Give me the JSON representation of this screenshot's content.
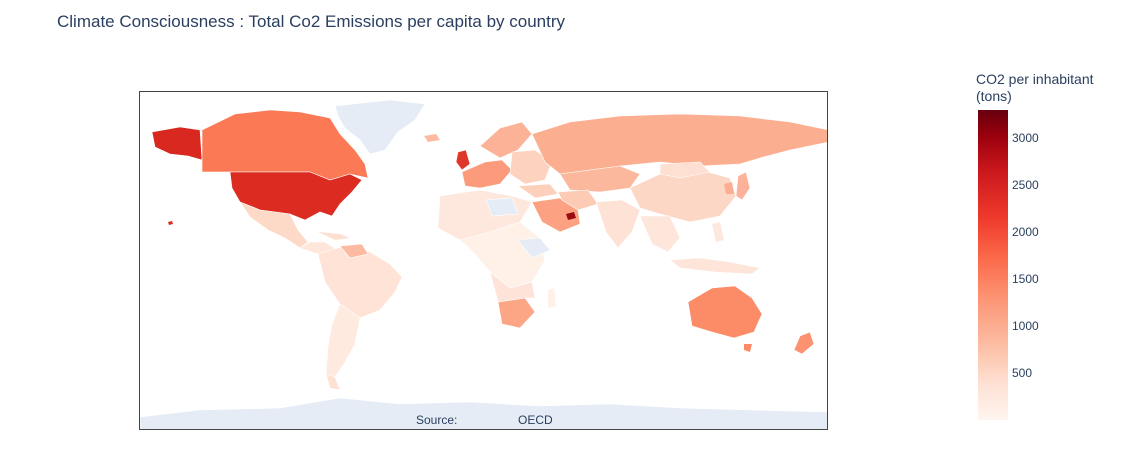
{
  "title": "Climate Consciousness : Total Co2 Emissions per capita by country",
  "annotation": {
    "label": "Source:",
    "value": "OECD"
  },
  "colorbar": {
    "title_line1": "CO2 per inhabitant",
    "title_line2": "(tons)",
    "ticks": [
      "3000",
      "2500",
      "2000",
      "1500",
      "1000",
      "500"
    ],
    "min": 0,
    "max": 3300,
    "colorscale": [
      "#fff5f0",
      "#fee0d2",
      "#fcbba1",
      "#fc9272",
      "#fb6a4a",
      "#ef3b2c",
      "#cb181d",
      "#99000d",
      "#67000d"
    ]
  },
  "map": {
    "projection": "equirectangular",
    "no_data_color": "#e5ecf6",
    "border_color": "#ffffff"
  },
  "chart_data": {
    "type": "heatmap",
    "title": "Climate Consciousness : Total Co2 Emissions per capita by country",
    "legend_title": "CO2 per inhabitant (tons)",
    "range": [
      0,
      3300
    ]
  }
}
